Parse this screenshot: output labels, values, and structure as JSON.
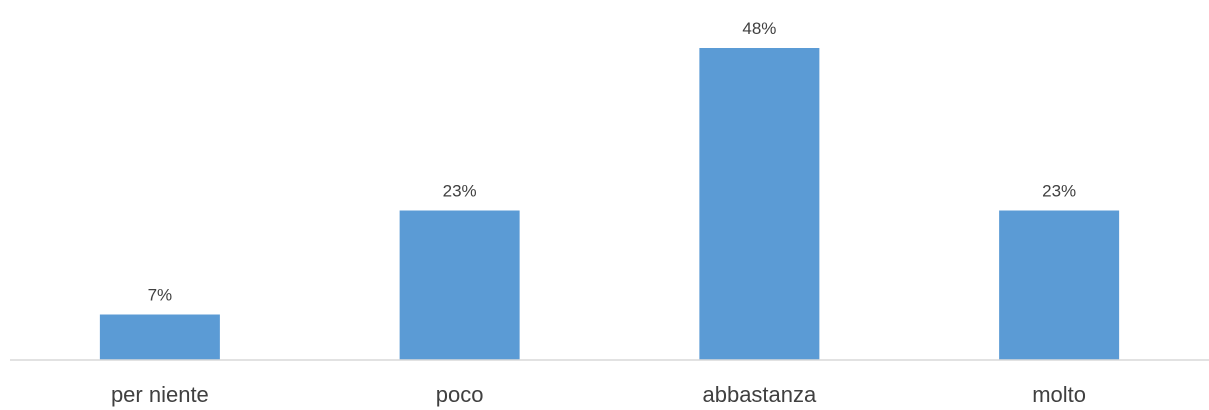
{
  "chart_data": {
    "type": "bar",
    "categories": [
      "per niente",
      "poco",
      "abbastanza",
      "molto"
    ],
    "values": [
      7,
      23,
      48,
      23
    ],
    "data_labels": [
      "7%",
      "23%",
      "48%",
      "23%"
    ],
    "title": "",
    "xlabel": "",
    "ylabel": "",
    "ylim": [
      0,
      50
    ],
    "grid": false,
    "legend": "none",
    "colors": {
      "bar": "#5B9BD5",
      "axis": "#D9D9D9",
      "text": "#404040"
    }
  }
}
